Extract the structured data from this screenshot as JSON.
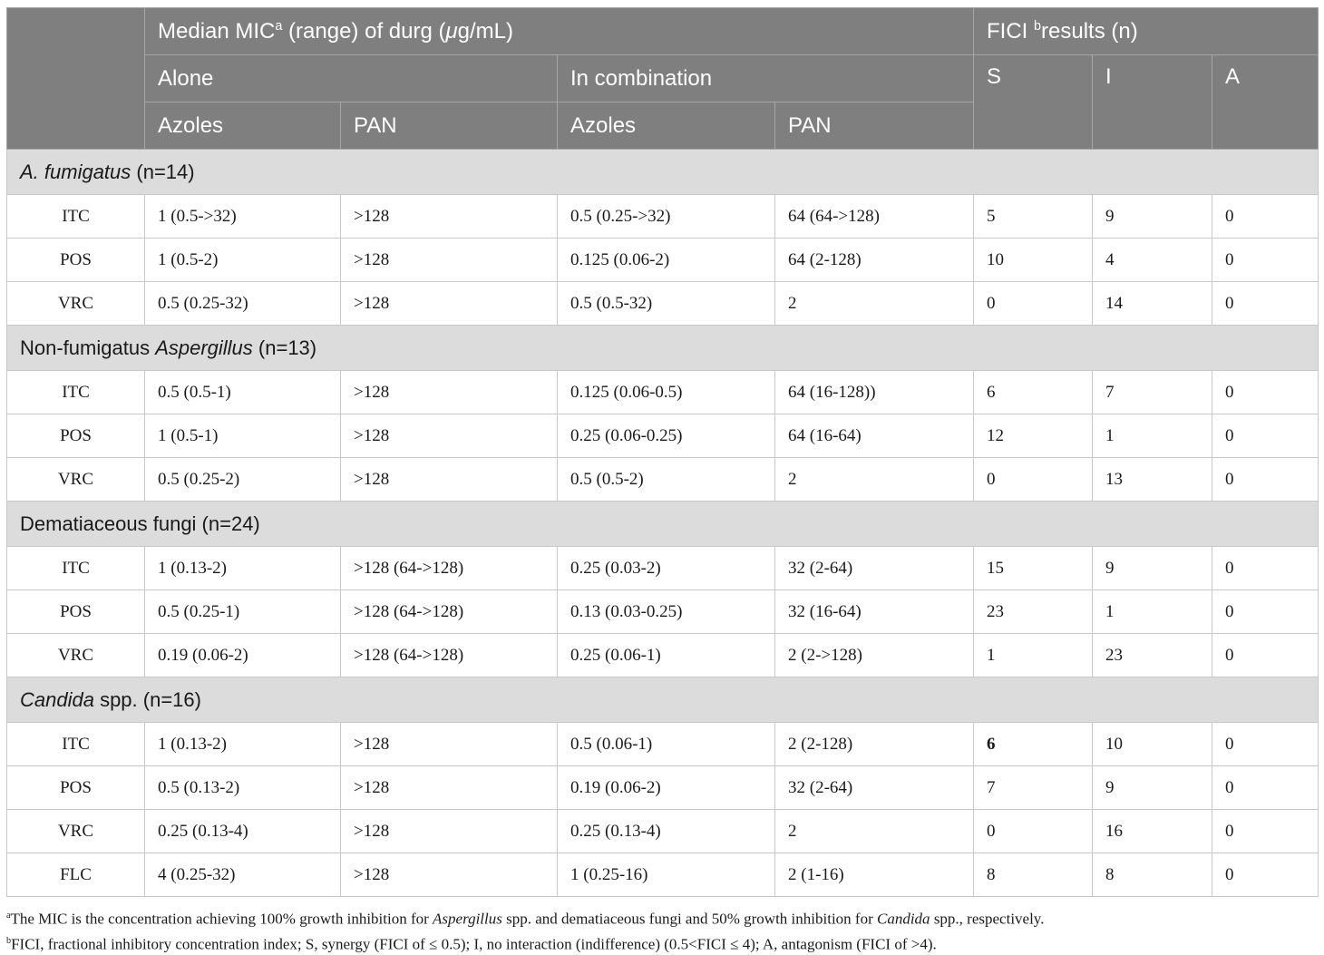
{
  "header": {
    "median_mic_pre": "Median MIC",
    "median_mic_sup": "a",
    "median_mic_post": " (range) of durg (",
    "mu": "μ",
    "median_mic_unit": "g/mL)",
    "fici_pre": "FICI ",
    "fici_sup": "b",
    "fici_post": "results (n)",
    "alone": "Alone",
    "in_combination": "In combination",
    "azoles_1": "Azoles",
    "pan_1": "PAN",
    "azoles_2": "Azoles",
    "pan_2": "PAN",
    "s": "S",
    "i": "I",
    "a": "A"
  },
  "groups": [
    {
      "label_italic": "A. fumigatus",
      "label_plain": " (n=14)",
      "rows": [
        {
          "drug": "ITC",
          "alone_azoles": "1 (0.5->32)",
          "alone_pan": ">128",
          "comb_azoles": "0.5 (0.25->32)",
          "comb_pan": "64 (64->128)",
          "s": "5",
          "i": "9",
          "a": "0"
        },
        {
          "drug": "POS",
          "alone_azoles": "1 (0.5-2)",
          "alone_pan": ">128",
          "comb_azoles": "0.125 (0.06-2)",
          "comb_pan": "64 (2-128)",
          "s": "10",
          "i": "4",
          "a": "0"
        },
        {
          "drug": "VRC",
          "alone_azoles": "0.5 (0.25-32)",
          "alone_pan": ">128",
          "comb_azoles": "0.5 (0.5-32)",
          "comb_pan": "2",
          "s": "0",
          "i": "14",
          "a": "0"
        }
      ]
    },
    {
      "label_pre": "Non-fumigatus ",
      "label_italic": "Aspergillus",
      "label_plain": " (n=13)",
      "rows": [
        {
          "drug": "ITC",
          "alone_azoles": "0.5 (0.5-1)",
          "alone_pan": ">128",
          "comb_azoles": "0.125 (0.06-0.5)",
          "comb_pan": "64 (16-128))",
          "s": "6",
          "i": "7",
          "a": "0"
        },
        {
          "drug": "POS",
          "alone_azoles": "1 (0.5-1)",
          "alone_pan": ">128",
          "comb_azoles": "0.25 (0.06-0.25)",
          "comb_pan": "64 (16-64)",
          "s": "12",
          "i": "1",
          "a": "0"
        },
        {
          "drug": "VRC",
          "alone_azoles": "0.5 (0.25-2)",
          "alone_pan": ">128",
          "comb_azoles": "0.5 (0.5-2)",
          "comb_pan": "2",
          "s": "0",
          "i": "13",
          "a": "0"
        }
      ]
    },
    {
      "label_pre": "Dematiaceous fungi (n=24)",
      "rows": [
        {
          "drug": "ITC",
          "alone_azoles": "1 (0.13-2)",
          "alone_pan": ">128 (64->128)",
          "comb_azoles": "0.25 (0.03-2)",
          "comb_pan": "32 (2-64)",
          "s": "15",
          "i": "9",
          "a": "0"
        },
        {
          "drug": "POS",
          "alone_azoles": "0.5 (0.25-1)",
          "alone_pan": ">128 (64->128)",
          "comb_azoles": "0.13 (0.03-0.25)",
          "comb_pan": "32 (16-64)",
          "s": "23",
          "i": "1",
          "a": "0"
        },
        {
          "drug": "VRC",
          "alone_azoles": "0.19 (0.06-2)",
          "alone_pan": ">128 (64->128)",
          "comb_azoles": "0.25 (0.06-1)",
          "comb_pan": "2 (2->128)",
          "s": "1",
          "i": "23",
          "a": "0"
        }
      ]
    },
    {
      "label_italic": "Candida",
      "label_plain": " spp. (n=16)",
      "rows": [
        {
          "drug": "ITC",
          "alone_azoles": "1 (0.13-2)",
          "alone_pan": ">128",
          "comb_azoles": "0.5 (0.06-1)",
          "comb_pan": "2 (2-128)",
          "s": "6",
          "i": "10",
          "a": "0"
        },
        {
          "drug": "POS",
          "alone_azoles": "0.5 (0.13-2)",
          "alone_pan": ">128",
          "comb_azoles": "0.19 (0.06-2)",
          "comb_pan": "32 (2-64)",
          "s": "7",
          "i": "9",
          "a": "0"
        },
        {
          "drug": "VRC",
          "alone_azoles": "0.25 (0.13-4)",
          "alone_pan": ">128",
          "comb_azoles": "0.25 (0.13-4)",
          "comb_pan": "2",
          "s": "0",
          "i": "16",
          "a": "0"
        },
        {
          "drug": "FLC",
          "alone_azoles": "4 (0.25-32)",
          "alone_pan": ">128",
          "comb_azoles": "1 (0.25-16)",
          "comb_pan": "2 (1-16)",
          "s": "8",
          "i": "8",
          "a": "0"
        }
      ]
    }
  ],
  "footnotes": {
    "a_sup": "a",
    "a_pre": "The MIC is the concentration achieving 100% growth inhibition for ",
    "a_it1": "Aspergillus",
    "a_mid": " spp. and dematiaceous fungi and 50% growth inhibition for ",
    "a_it2": "Candida",
    "a_post": " spp., respectively.",
    "b_sup": "b",
    "b_text": "FICI, fractional inhibitory concentration index; S, synergy (FICI of ≤ 0.5); I, no interaction (indifference) (0.5<FICI ≤ 4); A, antagonism (FICI of >4)."
  }
}
